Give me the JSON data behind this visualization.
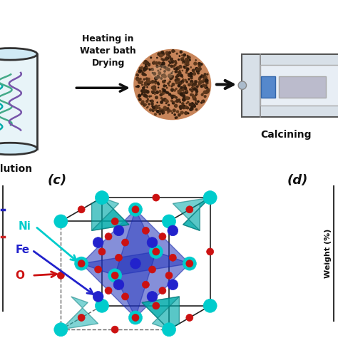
{
  "bg_color": "#ffffff",
  "solution_text": "solution",
  "heating_text": "Heating in\nWater bath\nDrying",
  "calcining_text": "Calcining",
  "label_c": "(c)",
  "label_d": "(d)",
  "ni_label": "Ni",
  "fe_label": "Fe",
  "o_label": "O",
  "weight_label": "Weight (%)",
  "ni_color": "#00CCCC",
  "fe_color": "#2222CC",
  "o_color": "#CC1111",
  "cube_edge_color": "#222222",
  "teal_poly_color": "#00AAAA",
  "blue_poly_color": "#2233BB",
  "beaker_face": "#e8f4f8",
  "beaker_edge": "#333333",
  "foam_base": "#C8855A",
  "furnace_face": "#D0D8E0",
  "furnace_edge": "#555555"
}
